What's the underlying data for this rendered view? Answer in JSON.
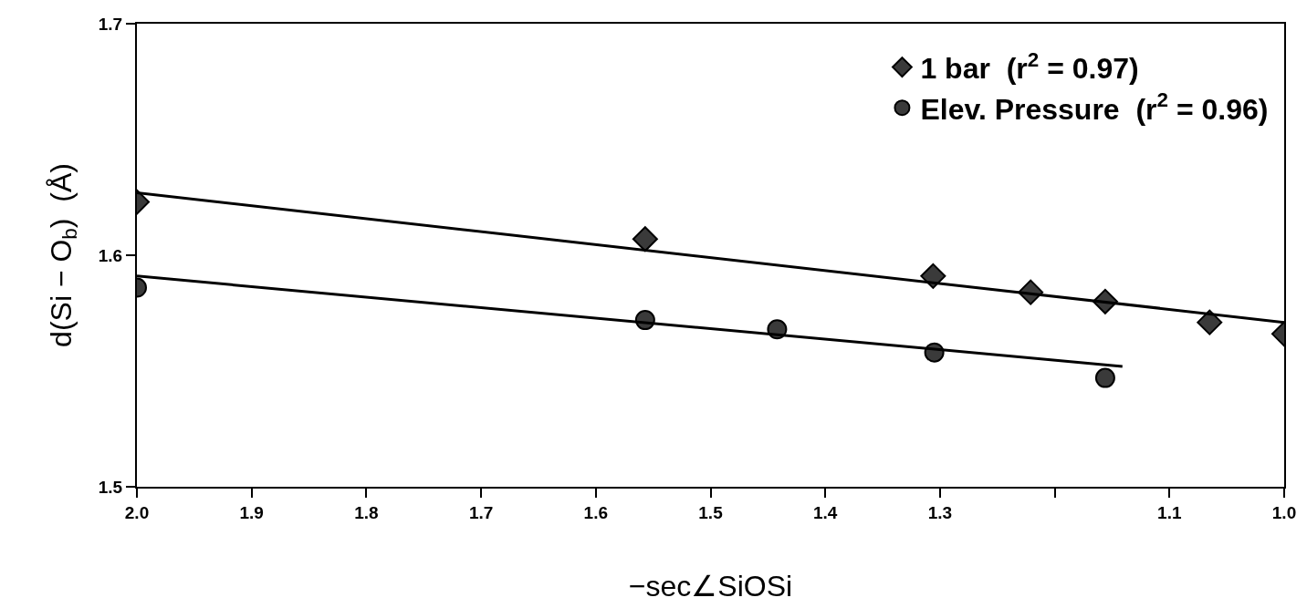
{
  "chart_data": {
    "type": "scatter",
    "xlabel": "−sec∠SiOSi",
    "ylabel": "d(Si − O$_{b}$)  (Å)",
    "xlim": [
      2.0,
      1.0
    ],
    "xticks": [
      {
        "value": 2,
        "label": "2.0"
      },
      1.9,
      1.8,
      1.7,
      1.6,
      1.5,
      1.4,
      1.3,
      {
        "value": 1.2,
        "label": null
      },
      1.1,
      {
        "value": 1,
        "label": "1.0"
      }
    ],
    "ylim": [
      1.5,
      1.7
    ],
    "yticks": [
      1.5,
      1.6,
      1.7
    ],
    "legend": "top right",
    "series": [
      {
        "name": "1 bar  (r$^{2}$ = 0.97)",
        "marker": "diamond",
        "color": "#3a3a3a",
        "x": [
          2.0,
          1.557,
          1.306,
          1.221,
          1.156,
          1.065,
          1.0
        ],
        "values": [
          1.623,
          1.607,
          1.591,
          1.584,
          1.58,
          1.571,
          1.566
        ]
      },
      {
        "name": "Elev. Pressure  (r$^{2}$ = 0.96)",
        "marker": "circle",
        "color": "#3a3a3a",
        "x": [
          2.0,
          1.557,
          1.442,
          1.305,
          1.156
        ],
        "values": [
          1.586,
          1.572,
          1.568,
          1.558,
          1.547
        ]
      },
      {
        "type": "line",
        "color": "#000000",
        "x": [
          2.0,
          1.0
        ],
        "values": [
          1.627,
          1.571
        ]
      },
      {
        "type": "line",
        "color": "#000000",
        "x": [
          2.0,
          1.141
        ],
        "values": [
          1.591,
          1.552
        ]
      }
    ]
  }
}
